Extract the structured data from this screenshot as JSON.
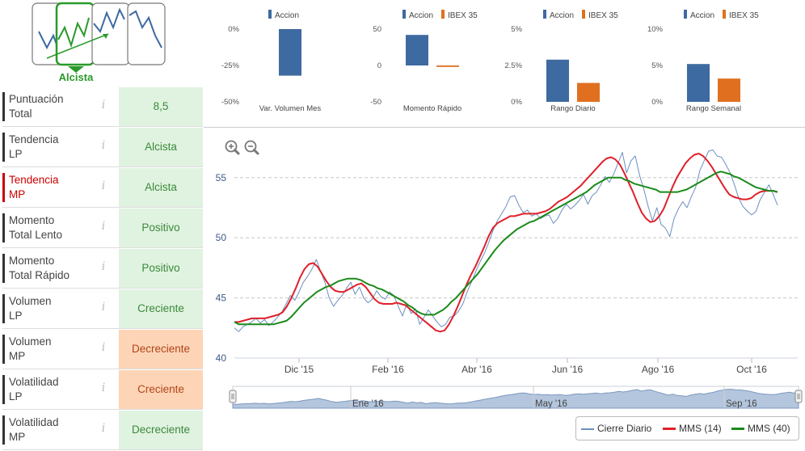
{
  "trend": {
    "label": "Alcista",
    "accent": "#2a9a2a"
  },
  "metrics": [
    {
      "label": [
        "Puntuación",
        "Total"
      ],
      "value": "8,5",
      "status": "good",
      "highlight": false
    },
    {
      "label": [
        "Tendencia",
        "LP"
      ],
      "value": "Alcista",
      "status": "good",
      "highlight": false
    },
    {
      "label": [
        "Tendencia",
        "MP"
      ],
      "value": "Alcista",
      "status": "good",
      "highlight": true
    },
    {
      "label": [
        "Momento",
        "Total Lento"
      ],
      "value": "Positivo",
      "status": "good",
      "highlight": false
    },
    {
      "label": [
        "Momento",
        "Total Rápido"
      ],
      "value": "Positivo",
      "status": "good",
      "highlight": false
    },
    {
      "label": [
        "Volumen",
        "LP"
      ],
      "value": "Creciente",
      "status": "good",
      "highlight": false
    },
    {
      "label": [
        "Volumen",
        "MP"
      ],
      "value": "Decreciente",
      "status": "bad",
      "highlight": false
    },
    {
      "label": [
        "Volatilidad",
        "LP"
      ],
      "value": "Creciente",
      "status": "bad",
      "highlight": false
    },
    {
      "label": [
        "Volatilidad",
        "MP"
      ],
      "value": "Decreciente",
      "status": "good",
      "highlight": false
    }
  ],
  "info_glyph": "i",
  "colors": {
    "accion": "#3d6aa0",
    "ibex": "#e07020",
    "price": "#6b8fbf",
    "mms14": "#e0202a",
    "mms40": "#1a8a1a",
    "nav": "#b4c6dd"
  },
  "chart_data": [
    {
      "type": "bar",
      "title": "",
      "xlabel": "Var. Volumen Mes",
      "ylim": [
        -50,
        0
      ],
      "yticks": [
        "0%",
        "-25%",
        "-50%"
      ],
      "series": [
        {
          "name": "Accion",
          "values": [
            -32
          ]
        }
      ]
    },
    {
      "type": "bar",
      "title": "",
      "xlabel": "Momento Rápido",
      "ylim": [
        -50,
        50
      ],
      "yticks": [
        "50",
        "0",
        "-50"
      ],
      "series": [
        {
          "name": "Accion",
          "values": [
            42
          ]
        },
        {
          "name": "IBEX 35",
          "values": [
            -2
          ]
        }
      ]
    },
    {
      "type": "bar",
      "title": "",
      "xlabel": "Rango Diario",
      "ylim": [
        0,
        5
      ],
      "yticks": [
        "5%",
        "2.5%",
        "0%"
      ],
      "series": [
        {
          "name": "Accion",
          "values": [
            2.9
          ]
        },
        {
          "name": "IBEX 35",
          "values": [
            1.3
          ]
        }
      ]
    },
    {
      "type": "bar",
      "title": "",
      "xlabel": "Rango Semanal",
      "ylim": [
        0,
        10
      ],
      "yticks": [
        "10%",
        "5%",
        "0%"
      ],
      "series": [
        {
          "name": "Accion",
          "values": [
            5.2
          ]
        },
        {
          "name": "IBEX 35",
          "values": [
            3.2
          ]
        }
      ]
    },
    {
      "type": "line",
      "title": "",
      "x_ticks": [
        "Dic '15",
        "Feb '16",
        "Abr '16",
        "Jun '16",
        "Ago '16",
        "Oct '16"
      ],
      "y_ticks": [
        "55",
        "50",
        "45",
        "40"
      ],
      "ylim": [
        40,
        57
      ],
      "navigator_ticks": [
        "Ene '16",
        "May '16",
        "Sep '16"
      ],
      "zoom": [
        "zoom-in",
        "zoom-out"
      ],
      "series": [
        {
          "name": "Cierre Diario",
          "values": [
            42.5,
            42.2,
            42.6,
            42.8,
            43.0,
            43.3,
            42.9,
            43.2,
            42.7,
            43.0,
            43.4,
            43.8,
            44.5,
            45.2,
            44.8,
            45.5,
            46.3,
            46.8,
            47.4,
            48.2,
            47.2,
            46.3,
            45.0,
            44.3,
            44.8,
            45.2,
            45.8,
            46.3,
            45.3,
            45.9,
            45.0,
            44.6,
            44.9,
            45.6,
            45.1,
            44.9,
            45.5,
            45.2,
            44.3,
            43.5,
            44.5,
            43.7,
            44.1,
            42.8,
            43.4,
            44.0,
            43.5,
            43.0,
            42.6,
            42.8,
            43.4,
            43.5,
            43.9,
            44.5,
            45.5,
            46.3,
            47.2,
            48.0,
            48.7,
            49.6,
            50.6,
            51.4,
            52.0,
            52.6,
            53.4,
            53.5,
            52.7,
            52.1,
            52.3,
            51.8,
            52.0,
            51.6,
            51.8,
            51.9,
            51.2,
            51.6,
            52.3,
            52.8,
            52.4,
            52.7,
            53.1,
            53.6,
            52.8,
            53.5,
            53.8,
            54.4,
            55.1,
            54.6,
            55.3,
            56.2,
            57.1,
            55.4,
            56.4,
            56.8,
            55.2,
            54.0,
            52.6,
            51.4,
            52.5,
            51.1,
            50.8,
            50.1,
            51.6,
            52.4,
            53.0,
            52.5,
            53.4,
            54.2,
            55.6,
            56.4,
            57.2,
            57.3,
            56.8,
            56.7,
            56.1,
            55.4,
            54.4,
            53.3,
            52.6,
            52.2,
            51.9,
            52.2,
            53.2,
            53.8,
            54.4,
            53.6,
            52.7
          ]
        },
        {
          "name": "MMS (14)",
          "values": [
            43.0,
            43.0,
            43.1,
            43.2,
            43.3,
            43.3,
            43.3,
            43.3,
            43.4,
            43.5,
            43.6,
            43.8,
            44.3,
            45.0,
            45.8,
            46.7,
            47.4,
            47.8,
            47.9,
            47.6,
            47.0,
            46.4,
            45.9,
            45.6,
            45.5,
            45.5,
            45.7,
            45.9,
            46.1,
            46.2,
            45.9,
            45.4,
            44.9,
            44.6,
            44.5,
            44.5,
            44.5,
            44.6,
            44.5,
            44.4,
            44.1,
            43.8,
            43.5,
            43.2,
            42.9,
            42.6,
            42.3,
            42.2,
            42.3,
            42.8,
            43.5,
            44.3,
            45.2,
            46.1,
            46.9,
            47.6,
            48.4,
            49.2,
            50.1,
            50.8,
            51.2,
            51.4,
            51.6,
            51.8,
            51.8,
            51.9,
            52.0,
            52.0,
            52.0,
            52.0,
            52.1,
            52.2,
            52.4,
            52.7,
            53.0,
            53.2,
            53.4,
            53.7,
            54.0,
            54.3,
            54.7,
            55.1,
            55.5,
            55.9,
            56.3,
            56.6,
            56.7,
            56.5,
            56.1,
            55.4,
            54.6,
            53.8,
            52.9,
            52.1,
            51.6,
            51.3,
            51.4,
            51.8,
            52.4,
            53.3,
            54.2,
            55.0,
            55.6,
            56.2,
            56.6,
            56.9,
            57.0,
            56.8,
            56.4,
            55.9,
            55.3,
            54.7,
            54.1,
            53.6,
            53.4,
            53.3,
            53.2,
            53.2,
            53.3,
            53.6,
            53.8,
            53.9,
            53.9,
            53.9,
            53.8
          ]
        },
        {
          "name": "MMS (40)",
          "values": [
            43.0,
            42.8,
            42.8,
            42.8,
            42.8,
            42.8,
            42.8,
            42.8,
            42.8,
            42.8,
            42.9,
            43.0,
            43.1,
            43.4,
            43.8,
            44.2,
            44.6,
            44.9,
            45.2,
            45.5,
            45.7,
            45.9,
            46.0,
            46.2,
            46.4,
            46.5,
            46.6,
            46.6,
            46.6,
            46.5,
            46.3,
            46.1,
            46.0,
            45.8,
            45.7,
            45.5,
            45.3,
            45.1,
            44.9,
            44.7,
            44.4,
            44.2,
            43.9,
            43.7,
            43.6,
            43.6,
            43.6,
            43.8,
            44.0,
            44.3,
            44.7,
            45.0,
            45.4,
            45.8,
            46.2,
            46.6,
            47.0,
            47.5,
            48.0,
            48.5,
            49.0,
            49.4,
            49.8,
            50.1,
            50.4,
            50.7,
            50.9,
            51.1,
            51.3,
            51.4,
            51.6,
            51.8,
            52.0,
            52.2,
            52.4,
            52.6,
            52.8,
            53.0,
            53.2,
            53.4,
            53.6,
            53.8,
            54.1,
            54.4,
            54.6,
            54.8,
            55.0,
            55.0,
            55.0,
            55.0,
            54.8,
            54.7,
            54.5,
            54.4,
            54.3,
            54.2,
            54.1,
            54.0,
            53.8,
            53.8,
            53.8,
            53.8,
            53.8,
            53.9,
            54.0,
            54.2,
            54.4,
            54.6,
            54.8,
            55.0,
            55.2,
            55.4,
            55.5,
            55.4,
            55.3,
            55.1,
            55.0,
            54.8,
            54.6,
            54.4,
            54.2,
            54.1,
            54.0,
            53.9,
            53.9,
            53.8
          ]
        }
      ]
    }
  ]
}
